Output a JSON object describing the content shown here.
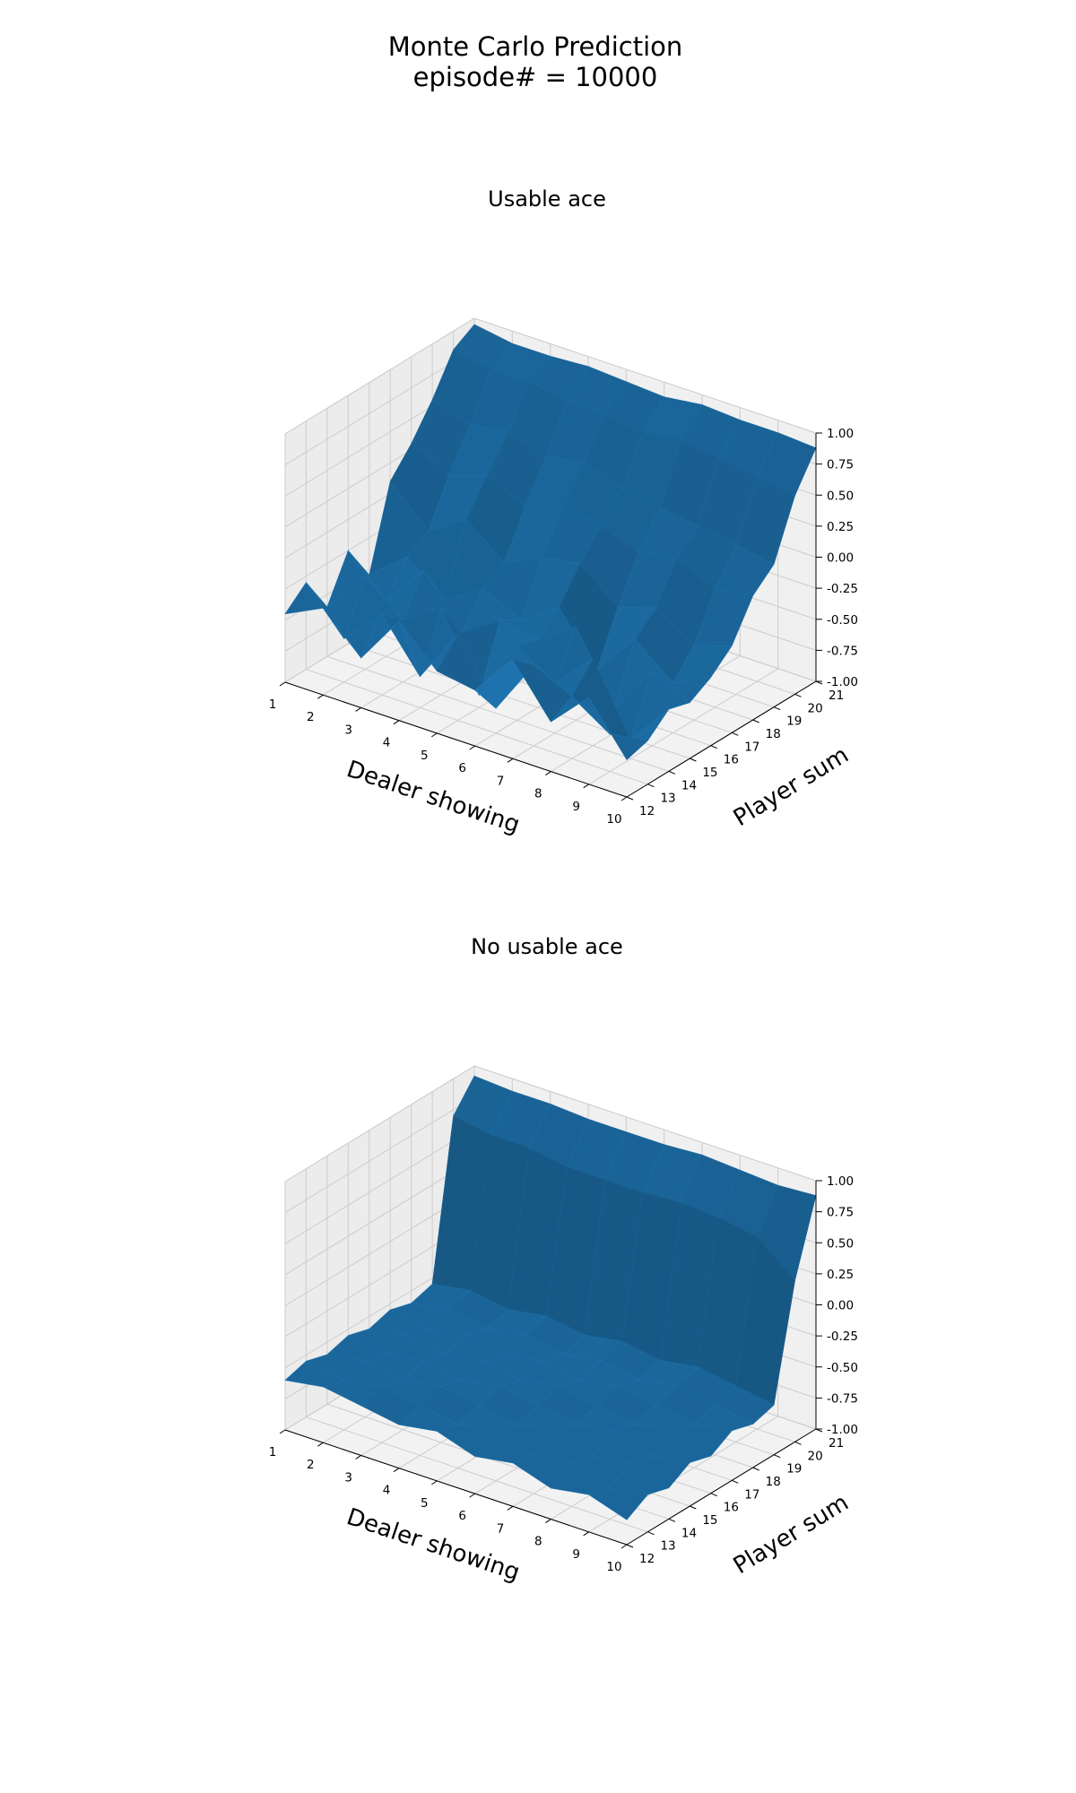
{
  "figure": {
    "title_line1": "Monte Carlo Prediction",
    "title_line2": "episode# = 10000"
  },
  "colors": {
    "surface": "#1f77b4",
    "pane": "#f2f2f2",
    "grid": "#cccccc"
  },
  "chart_data": [
    {
      "type": "surface3d",
      "title": "Usable ace",
      "xlabel": "Dealer showing",
      "ylabel": "Player sum",
      "zlabel": "",
      "x": [
        1,
        2,
        3,
        4,
        5,
        6,
        7,
        8,
        9,
        10
      ],
      "y": [
        12,
        13,
        14,
        15,
        16,
        17,
        18,
        19,
        20,
        21
      ],
      "x_ticks": [
        "1",
        "2",
        "3",
        "4",
        "5",
        "6",
        "7",
        "8",
        "9",
        "10"
      ],
      "y_ticks": [
        "12",
        "13",
        "14",
        "15",
        "16",
        "17",
        "18",
        "19",
        "20",
        "21"
      ],
      "z_ticks": [
        "-1.00",
        "-0.75",
        "-0.50",
        "-0.25",
        "0.00",
        "0.25",
        "0.50",
        "0.75",
        "1.00"
      ],
      "zlim": [
        -1,
        1
      ],
      "z": [
        [
          -0.45,
          -0.3,
          -0.6,
          -0.2,
          -0.5,
          -0.55,
          -0.2,
          -0.6,
          -0.3,
          -0.7
        ],
        [
          -0.3,
          -0.65,
          -0.35,
          -0.75,
          -0.3,
          -0.8,
          -0.35,
          -0.5,
          -0.7,
          -0.65
        ],
        [
          -0.6,
          -0.25,
          -0.5,
          -0.3,
          -0.9,
          -0.4,
          -0.6,
          -0.3,
          -0.85,
          -0.5
        ],
        [
          -0.25,
          -0.55,
          -0.2,
          -0.6,
          -0.4,
          -0.45,
          -0.25,
          -0.8,
          -0.4,
          -0.55
        ],
        [
          -0.55,
          -0.3,
          -0.55,
          -0.35,
          -0.5,
          -0.3,
          -0.7,
          -0.35,
          -0.6,
          -0.45
        ],
        [
          0.1,
          -0.2,
          0.0,
          -0.25,
          -0.1,
          -0.05,
          -0.3,
          -0.2,
          -0.4,
          -0.3
        ],
        [
          0.3,
          0.15,
          0.25,
          0.1,
          0.2,
          0.15,
          0.05,
          0.1,
          -0.05,
          0.0
        ],
        [
          0.55,
          0.45,
          0.5,
          0.4,
          0.45,
          0.35,
          0.3,
          0.25,
          0.2,
          0.15
        ],
        [
          0.85,
          0.8,
          0.8,
          0.75,
          0.75,
          0.7,
          0.75,
          0.7,
          0.65,
          0.6
        ],
        [
          0.95,
          0.9,
          0.9,
          0.92,
          0.9,
          0.88,
          0.92,
          0.9,
          0.9,
          0.88
        ]
      ]
    },
    {
      "type": "surface3d",
      "title": "No usable ace",
      "xlabel": "Dealer showing",
      "ylabel": "Player sum",
      "zlabel": "",
      "x": [
        1,
        2,
        3,
        4,
        5,
        6,
        7,
        8,
        9,
        10
      ],
      "y": [
        12,
        13,
        14,
        15,
        16,
        17,
        18,
        19,
        20,
        21
      ],
      "x_ticks": [
        "1",
        "2",
        "3",
        "4",
        "5",
        "6",
        "7",
        "8",
        "9",
        "10"
      ],
      "y_ticks": [
        "12",
        "13",
        "14",
        "15",
        "16",
        "17",
        "18",
        "19",
        "20",
        "21"
      ],
      "z_ticks": [
        "-1.00",
        "-0.75",
        "-0.50",
        "-0.25",
        "0.00",
        "0.25",
        "0.50",
        "0.75",
        "1.00"
      ],
      "zlim": [
        -1,
        1
      ],
      "z": [
        [
          -0.6,
          -0.55,
          -0.6,
          -0.65,
          -0.6,
          -0.7,
          -0.65,
          -0.75,
          -0.7,
          -0.8
        ],
        [
          -0.55,
          -0.6,
          -0.55,
          -0.6,
          -0.65,
          -0.6,
          -0.7,
          -0.65,
          -0.75,
          -0.7
        ],
        [
          -0.6,
          -0.55,
          -0.6,
          -0.55,
          -0.6,
          -0.65,
          -0.6,
          -0.7,
          -0.65,
          -0.75
        ],
        [
          -0.55,
          -0.6,
          -0.55,
          -0.6,
          -0.55,
          -0.6,
          -0.65,
          -0.6,
          -0.7,
          -0.65
        ],
        [
          -0.6,
          -0.55,
          -0.6,
          -0.55,
          -0.6,
          -0.55,
          -0.6,
          -0.65,
          -0.6,
          -0.7
        ],
        [
          -0.55,
          -0.6,
          -0.55,
          -0.6,
          -0.55,
          -0.6,
          -0.55,
          -0.6,
          -0.65,
          -0.6
        ],
        [
          -0.6,
          -0.55,
          -0.6,
          -0.55,
          -0.6,
          -0.55,
          -0.6,
          -0.55,
          -0.6,
          -0.65
        ],
        [
          -0.55,
          -0.5,
          -0.55,
          -0.5,
          -0.55,
          -0.5,
          -0.55,
          -0.5,
          -0.55,
          -0.6
        ],
        [
          0.7,
          0.65,
          0.65,
          0.6,
          0.6,
          0.6,
          0.62,
          0.6,
          0.55,
          0.3
        ],
        [
          0.92,
          0.9,
          0.9,
          0.88,
          0.88,
          0.88,
          0.9,
          0.88,
          0.86,
          0.88
        ]
      ]
    }
  ]
}
